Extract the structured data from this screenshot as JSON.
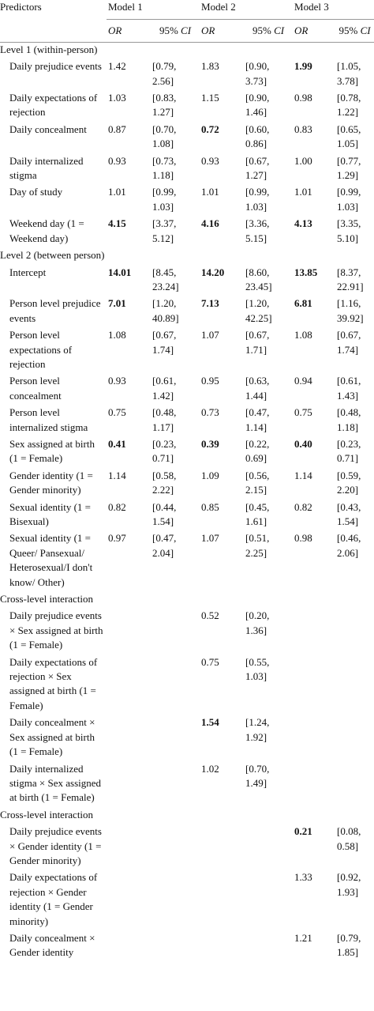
{
  "header": {
    "columns": [
      "Predictors",
      "Model 1",
      "Model 2",
      "Model 3"
    ],
    "subheader": {
      "or": "OR",
      "ci": [
        "95%",
        "CI"
      ]
    }
  },
  "table": {
    "rows": [
      {
        "label": "Level 1 (within-person)",
        "section": true
      },
      {
        "label": "Daily prejudice events",
        "cells": [
          "1.42",
          "[0.79, 2.56]",
          "1.83",
          "[0.90, 3.73]",
          "1.99",
          "[1.05, 3.78]"
        ],
        "bold": [
          false,
          false,
          true
        ]
      },
      {
        "label": "Daily expectations of rejection",
        "cells": [
          "1.03",
          "[0.83, 1.27]",
          "1.15",
          "[0.90, 1.46]",
          "0.98",
          "[0.78, 1.22]"
        ],
        "bold": [
          false,
          false,
          false
        ]
      },
      {
        "label": "Daily concealment",
        "cells": [
          "0.87",
          "[0.70, 1.08]",
          "0.72",
          "[0.60, 0.86]",
          "0.83",
          "[0.65, 1.05]"
        ],
        "bold": [
          false,
          true,
          false
        ]
      },
      {
        "label": "Daily internalized stigma",
        "cells": [
          "0.93",
          "[0.73, 1.18]",
          "0.93",
          "[0.67, 1.27]",
          "1.00",
          "[0.77, 1.29]"
        ],
        "bold": [
          false,
          false,
          false
        ]
      },
      {
        "label": "Day of study",
        "cells": [
          "1.01",
          "[0.99, 1.03]",
          "1.01",
          "[0.99, 1.03]",
          "1.01",
          "[0.99, 1.03]"
        ],
        "bold": [
          false,
          false,
          false
        ]
      },
      {
        "label": "Weekend day (1 = Weekend day)",
        "cells": [
          "4.15",
          "[3.37, 5.12]",
          "4.16",
          "[3.36, 5.15]",
          "4.13",
          "[3.35, 5.10]"
        ],
        "bold": [
          true,
          true,
          true
        ]
      },
      {
        "label": "Level 2 (between person)",
        "section": true
      },
      {
        "label": "Intercept",
        "cells": [
          "14.01",
          "[8.45, 23.24]",
          "14.20",
          "[8.60, 23.45]",
          "13.85",
          "[8.37, 22.91]"
        ],
        "bold": [
          true,
          true,
          true
        ]
      },
      {
        "label": "Person level prejudice events",
        "cells": [
          "7.01",
          "[1.20, 40.89]",
          "7.13",
          "[1.20, 42.25]",
          "6.81",
          "[1.16, 39.92]"
        ],
        "bold": [
          true,
          true,
          true
        ]
      },
      {
        "label": "Person level expectations of rejection",
        "cells": [
          "1.08",
          "[0.67, 1.74]",
          "1.07",
          "[0.67, 1.71]",
          "1.08",
          "[0.67, 1.74]"
        ],
        "bold": [
          false,
          false,
          false
        ]
      },
      {
        "label": "Person level concealment",
        "cells": [
          "0.93",
          "[0.61, 1.42]",
          "0.95",
          "[0.63, 1.44]",
          "0.94",
          "[0.61, 1.43]"
        ],
        "bold": [
          false,
          false,
          false
        ]
      },
      {
        "label": "Person level internalized stigma",
        "cells": [
          "0.75",
          "[0.48, 1.17]",
          "0.73",
          "[0.47, 1.14]",
          "0.75",
          "[0.48, 1.18]"
        ],
        "bold": [
          false,
          false,
          false
        ]
      },
      {
        "label": "Sex assigned at birth (1 = Female)",
        "cells": [
          "0.41",
          "[0.23, 0.71]",
          "0.39",
          "[0.22, 0.69]",
          "0.40",
          "[0.23, 0.71]"
        ],
        "bold": [
          true,
          true,
          true
        ]
      },
      {
        "label": "Gender identity (1 = Gender minority)",
        "cells": [
          "1.14",
          "[0.58, 2.22]",
          "1.09",
          "[0.56, 2.15]",
          "1.14",
          "[0.59, 2.20]"
        ],
        "bold": [
          false,
          false,
          false
        ]
      },
      {
        "label": "Sexual identity (1 = Bisexual)",
        "cells": [
          "0.82",
          "[0.44, 1.54]",
          "0.85",
          "[0.45, 1.61]",
          "0.82",
          "[0.43, 1.54]"
        ],
        "bold": [
          false,
          false,
          false
        ]
      },
      {
        "label": "Sexual identity (1 = Queer/ Pansexual/ Heterosexual/I don't know/ Other)",
        "cells": [
          "0.97",
          "[0.47, 2.04]",
          "1.07",
          "[0.51, 2.25]",
          "0.98",
          "[0.46, 2.06]"
        ],
        "bold": [
          false,
          false,
          false
        ]
      },
      {
        "label": "Cross-level interaction",
        "section": true
      },
      {
        "label": "Daily prejudice events × Sex assigned at birth (1 = Female)",
        "cells": [
          null,
          null,
          "0.52",
          "[0.20, 1.36]",
          null,
          null
        ],
        "bold": [
          false,
          false,
          false
        ]
      },
      {
        "label": "Daily expectations of rejection × Sex assigned at birth (1 = Female)",
        "cells": [
          null,
          null,
          "0.75",
          "[0.55, 1.03]",
          null,
          null
        ],
        "bold": [
          false,
          false,
          false
        ]
      },
      {
        "label": "Daily concealment × Sex assigned at birth (1 = Female)",
        "cells": [
          null,
          null,
          "1.54",
          "[1.24, 1.92]",
          null,
          null
        ],
        "bold": [
          false,
          true,
          false
        ]
      },
      {
        "label": "Daily internalized stigma × Sex assigned at birth (1 = Female)",
        "cells": [
          null,
          null,
          "1.02",
          "[0.70, 1.49]",
          null,
          null
        ],
        "bold": [
          false,
          false,
          false
        ]
      },
      {
        "label": "Cross-level interaction",
        "section": true
      },
      {
        "label": "Daily prejudice events × Gender identity (1 = Gender minority)",
        "cells": [
          null,
          null,
          null,
          null,
          "0.21",
          "[0.08, 0.58]"
        ],
        "bold": [
          false,
          false,
          true
        ]
      },
      {
        "label": "Daily expectations of rejection × Gender identity (1 = Gender minority)",
        "cells": [
          null,
          null,
          null,
          null,
          "1.33",
          "[0.92, 1.93]"
        ],
        "bold": [
          false,
          false,
          false
        ]
      },
      {
        "label": "Daily concealment × Gender identity",
        "cells": [
          null,
          null,
          null,
          null,
          "1.21",
          "[0.79, 1.85]"
        ],
        "bold": [
          false,
          false,
          false
        ]
      }
    ]
  }
}
